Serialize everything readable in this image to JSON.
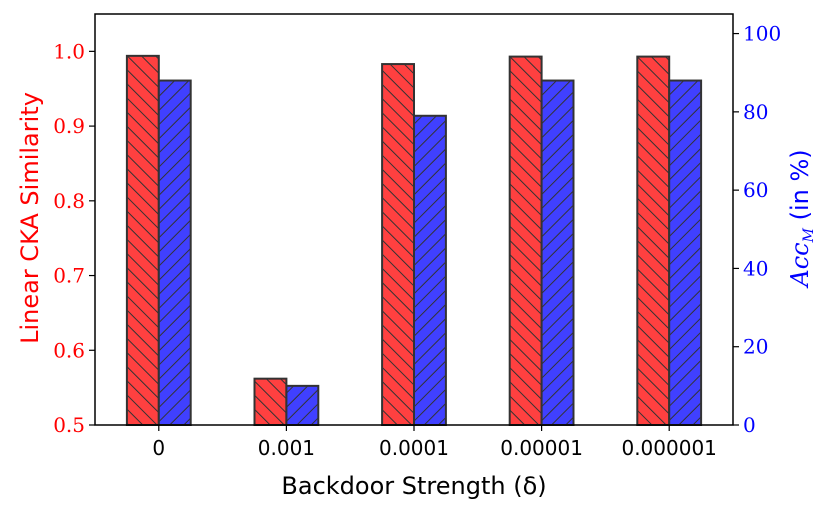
{
  "chart_data": {
    "type": "bar",
    "categories": [
      "0",
      "0.001",
      "0.0001",
      "0.00001",
      "0.000001"
    ],
    "series": [
      {
        "values": [
          0.994,
          0.562,
          0.983,
          0.993,
          0.993
        ],
        "color": "#ff4040",
        "hatch": "forward-diagonal",
        "axis": "left"
      },
      {
        "values": [
          88.0,
          10.0,
          79.0,
          88.0,
          88.0
        ],
        "color": "#4040ff",
        "hatch": "back-diagonal",
        "axis": "right"
      }
    ],
    "xlabel": "Backdoor Strength (δ)",
    "ylabel_left": "Linear CKA Similarity",
    "ylabel_right_math": "Acc",
    "ylabel_right_sub": "M",
    "ylabel_right_suffix": " (in %)",
    "ylim_left": [
      0.5,
      1.05
    ],
    "ylim_right": [
      0,
      105
    ],
    "yticks_left": [
      "0.5",
      "0.6",
      "0.7",
      "0.8",
      "0.9",
      "1.0"
    ],
    "yticks_right": [
      "0",
      "20",
      "40",
      "60",
      "80",
      "100"
    ],
    "left_axis_color": "#ff0000",
    "right_axis_color": "#0000ff",
    "bar_edge_color": "#333333",
    "grid": false
  }
}
